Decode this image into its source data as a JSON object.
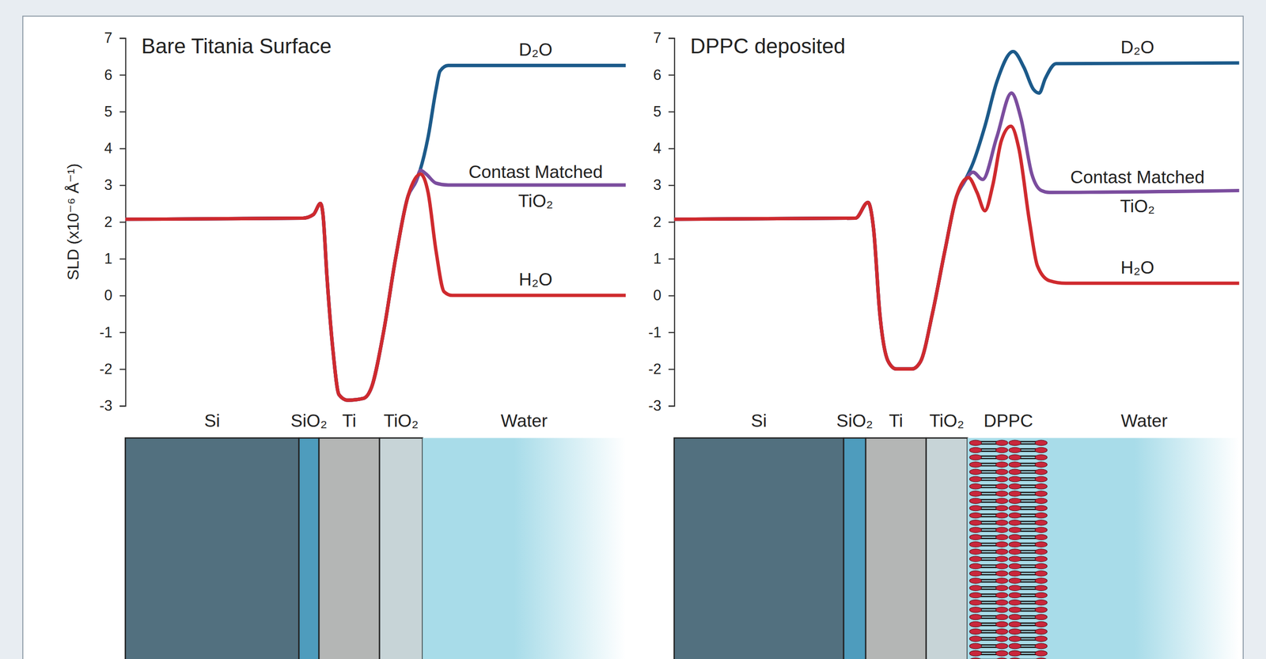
{
  "chart_data": [
    {
      "type": "line",
      "title": "Bare Titania Surface",
      "ylabel": "SLD (x10⁻⁶ Å⁻¹)",
      "xlim": [
        0,
        100
      ],
      "ylim": [
        -3,
        7
      ],
      "yticks": [
        -3,
        -2,
        -1,
        0,
        1,
        2,
        3,
        4,
        5,
        6,
        7
      ],
      "tick_labels": "y",
      "series": [
        {
          "name": "D₂O",
          "color": "#1c5a8a",
          "x": [
            0,
            35.5,
            37.6,
            39.0,
            39.5,
            40.3,
            41.5,
            42.7,
            44.4,
            47.6,
            49.2,
            51.6,
            54.0,
            56.5,
            58.1,
            58.9,
            60.5,
            62.1,
            62.9,
            64.5,
            100
          ],
          "values": [
            2.07,
            2.1,
            2.2,
            2.5,
            2.2,
            0.5,
            -1.5,
            -2.7,
            -2.85,
            -2.8,
            -2.5,
            -1,
            1,
            2.7,
            3.1,
            3.4,
            4.3,
            5.6,
            6.1,
            6.25,
            6.25
          ]
        },
        {
          "name": "Contast Matched TiO₂",
          "color": "#7b4d9e",
          "x": [
            0,
            35.5,
            37.6,
            39.0,
            39.5,
            40.3,
            41.5,
            42.7,
            44.4,
            47.6,
            49.2,
            51.6,
            54.0,
            56.5,
            58.1,
            59.0,
            60.1,
            62.1,
            64.5,
            100
          ],
          "values": [
            2.07,
            2.1,
            2.2,
            2.5,
            2.2,
            0.5,
            -1.5,
            -2.7,
            -2.85,
            -2.8,
            -2.5,
            -1,
            1,
            2.7,
            3.1,
            3.4,
            3.3,
            3.05,
            3.0,
            3.0
          ]
        },
        {
          "name": "H₂O",
          "color": "#cf2a2e",
          "x": [
            0,
            35.5,
            37.6,
            39.0,
            39.5,
            40.3,
            41.5,
            42.7,
            44.4,
            47.6,
            49.2,
            51.6,
            54.0,
            56.5,
            59.0,
            60.5,
            62.1,
            63.7,
            65.3,
            100
          ],
          "values": [
            2.07,
            2.1,
            2.2,
            2.5,
            2.2,
            0.5,
            -1.5,
            -2.7,
            -2.85,
            -2.8,
            -2.5,
            -1,
            1,
            2.7,
            3.3,
            2.8,
            1.2,
            0.1,
            0,
            0
          ]
        }
      ],
      "layers": [
        {
          "label": "Si",
          "from": 0,
          "to": 34.7,
          "color": "#52707f"
        },
        {
          "label": "SiO₂",
          "from": 34.7,
          "to": 38.7,
          "color": "#4e9cbd"
        },
        {
          "label": "Ti",
          "from": 38.7,
          "to": 50.8,
          "color": "#b4b6b5"
        },
        {
          "label": "TiO₂",
          "from": 50.8,
          "to": 59.4,
          "color": "#c7d4d7"
        },
        {
          "label": "Water",
          "from": 59.4,
          "to": 100,
          "color": "#a8dce9"
        }
      ]
    },
    {
      "type": "line",
      "title": "DPPC deposited",
      "xlim": [
        0,
        100
      ],
      "ylim": [
        -3,
        7
      ],
      "yticks": [
        -3,
        -2,
        -1,
        0,
        1,
        2,
        3,
        4,
        5,
        6,
        7
      ],
      "tick_labels": "y",
      "series": [
        {
          "name": "D₂O",
          "color": "#1c5a8a",
          "x": [
            0,
            32.1,
            34.3,
            35.3,
            36.4,
            37.9,
            39.3,
            42.1,
            43.6,
            45.7,
            47.9,
            50,
            51.4,
            52.9,
            55,
            57.1,
            60,
            61.9,
            63.6,
            64.6,
            65.7,
            67.6,
            100
          ],
          "values": [
            2.07,
            2.1,
            2.53,
            1.8,
            -0.5,
            -1.8,
            -2,
            -2,
            -1.8,
            -0.5,
            1.2,
            2.7,
            3.1,
            3.6,
            4.6,
            5.8,
            6.63,
            6.2,
            5.6,
            5.5,
            5.9,
            6.3,
            6.32
          ]
        },
        {
          "name": "Contast Matched TiO₂",
          "color": "#7b4d9e",
          "x": [
            0,
            32.1,
            34.3,
            35.3,
            36.4,
            37.9,
            39.3,
            42.1,
            43.6,
            45.7,
            47.9,
            50,
            51.4,
            52.9,
            54.6,
            57.1,
            59.7,
            61.4,
            63.3,
            65,
            66.4,
            100
          ],
          "values": [
            2.07,
            2.1,
            2.53,
            1.8,
            -0.5,
            -1.8,
            -2,
            -2,
            -1.8,
            -0.5,
            1.2,
            2.7,
            3.1,
            3.35,
            3.15,
            4.3,
            5.5,
            4.8,
            3.3,
            2.85,
            2.8,
            2.85
          ]
        },
        {
          "name": "H₂O",
          "color": "#cf2a2e",
          "x": [
            0,
            32.1,
            34.3,
            35.3,
            36.4,
            37.9,
            39.3,
            42.1,
            43.6,
            45.7,
            47.9,
            50,
            52.1,
            53.6,
            55,
            56.4,
            57.9,
            59.6,
            61,
            62.9,
            64.3,
            66.4,
            69.3,
            100
          ],
          "values": [
            2.07,
            2.1,
            2.53,
            1.8,
            -0.5,
            -1.8,
            -2,
            -2,
            -1.8,
            -0.5,
            1.2,
            2.7,
            3.2,
            2.8,
            2.3,
            3.0,
            4.2,
            4.6,
            4.0,
            2.0,
            0.8,
            0.4,
            0.33,
            0.33
          ]
        }
      ],
      "layers": [
        {
          "label": "Si",
          "from": 0,
          "to": 30,
          "color": "#52707f"
        },
        {
          "label": "SiO₂",
          "from": 30,
          "to": 33.9,
          "color": "#4e9cbd"
        },
        {
          "label": "Ti",
          "from": 33.9,
          "to": 44.6,
          "color": "#b4b6b5"
        },
        {
          "label": "TiO₂",
          "from": 44.6,
          "to": 51.9,
          "color": "#c7d4d7"
        },
        {
          "label": "DPPC",
          "from": 51.9,
          "to": 66.4,
          "color": "#c8283c",
          "marker": "lipid"
        },
        {
          "label": "Water",
          "from": 66.4,
          "to": 100,
          "color": "#a8dce9"
        }
      ]
    }
  ]
}
